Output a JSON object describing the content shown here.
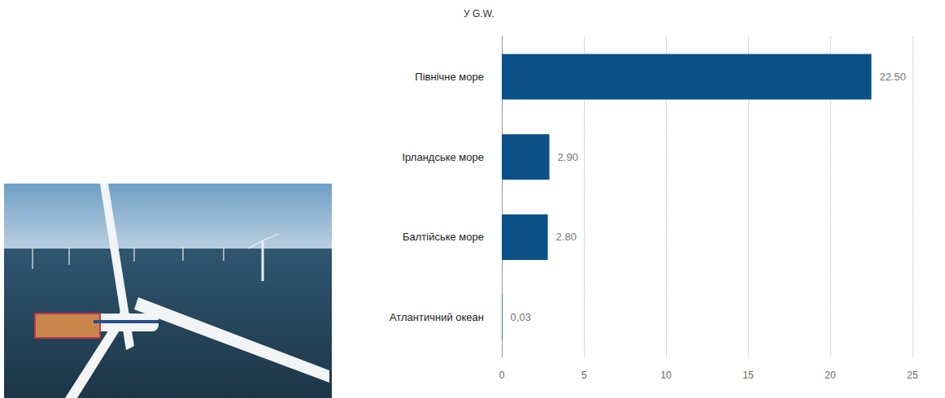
{
  "chart_data": {
    "type": "bar",
    "orientation": "horizontal",
    "title": "У G.W.",
    "categories": [
      "Північне море",
      "Ірландське море",
      "Балтійське море",
      "Атлантичний океан"
    ],
    "values": [
      22.5,
      2.9,
      2.8,
      0.03
    ],
    "value_labels": [
      "22.50",
      "2.90",
      "2.80",
      "0,03"
    ],
    "color": "#0b5086",
    "xlim": [
      0,
      25
    ],
    "xticks": [
      0,
      5,
      10,
      15,
      20,
      25
    ],
    "grid": true,
    "data_labels": true
  }
}
